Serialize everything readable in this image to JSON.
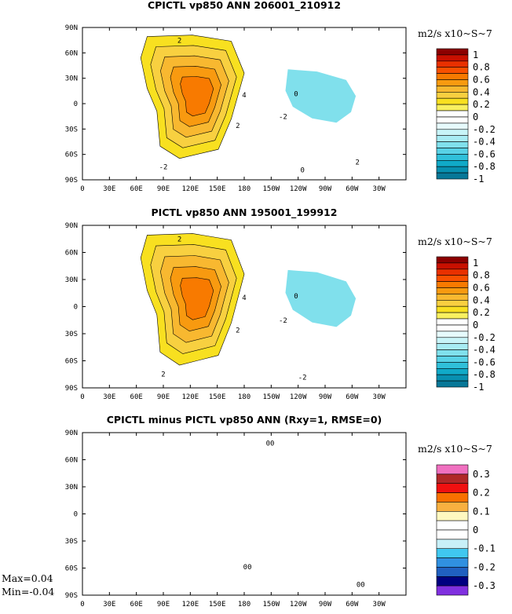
{
  "chart_data": [
    {
      "type": "contour-map",
      "title": "CPICTL vp850 ANN 206001_210912",
      "colorbar_unit": "m2/s x10~S~7",
      "colorbar_labels": [
        "1",
        "0.8",
        "0.6",
        "0.4",
        "0.2",
        "0",
        "-0.2",
        "-0.4",
        "-0.6",
        "-0.8",
        "-1"
      ],
      "colorbar_colors": [
        "#8c0000",
        "#c81000",
        "#e83000",
        "#f85000",
        "#f87a00",
        "#f89a10",
        "#f8b830",
        "#f8d040",
        "#f8e020",
        "#f8f060",
        "#ffffff",
        "#ffffff",
        "#e6fafc",
        "#c8f4f8",
        "#a8ecf4",
        "#80e0ec",
        "#58d2e6",
        "#30c0da",
        "#10aac8",
        "#0890b0",
        "#087898"
      ],
      "x_ticks": [
        "0",
        "30E",
        "60E",
        "90E",
        "120E",
        "150E",
        "180",
        "150W",
        "120W",
        "90W",
        "60W",
        "30W"
      ],
      "y_ticks": [
        "90N",
        "60N",
        "30N",
        "0",
        "30S",
        "60S",
        "90S"
      ],
      "contour_labels": [
        "2",
        "4",
        "2",
        "-2",
        "0",
        "-2",
        "0",
        "2"
      ]
    },
    {
      "type": "contour-map",
      "title": "PICTL vp850 ANN 195001_199912",
      "colorbar_unit": "m2/s x10~S~7",
      "colorbar_labels": [
        "1",
        "0.8",
        "0.6",
        "0.4",
        "0.2",
        "0",
        "-0.2",
        "-0.4",
        "-0.6",
        "-0.8",
        "-1"
      ],
      "colorbar_colors": [
        "#8c0000",
        "#c81000",
        "#e83000",
        "#f85000",
        "#f87a00",
        "#f89a10",
        "#f8b830",
        "#f8d040",
        "#f8e020",
        "#f8f060",
        "#ffffff",
        "#ffffff",
        "#e6fafc",
        "#c8f4f8",
        "#a8ecf4",
        "#80e0ec",
        "#58d2e6",
        "#30c0da",
        "#10aac8",
        "#0890b0",
        "#087898"
      ],
      "x_ticks": [
        "0",
        "30E",
        "60E",
        "90E",
        "120E",
        "150E",
        "180",
        "150W",
        "120W",
        "90W",
        "60W",
        "30W"
      ],
      "y_ticks": [
        "90N",
        "60N",
        "30N",
        "0",
        "30S",
        "60S",
        "90S"
      ],
      "contour_labels": [
        "2",
        "4",
        "2",
        "-2",
        "0",
        "2",
        "-2"
      ]
    },
    {
      "type": "contour-map",
      "title": "CPICTL minus PICTL vp850 ANN (Rxy=1, RMSE=0)",
      "colorbar_unit": "m2/s x10~S~7",
      "colorbar_labels": [
        "0.3",
        "0.2",
        "0.1",
        "0",
        "-0.1",
        "-0.2",
        "-0.3"
      ],
      "colorbar_colors": [
        "#f070c0",
        "#b02828",
        "#f01010",
        "#f87000",
        "#f8b040",
        "#fff8c0",
        "#ffffff",
        "#ffffff",
        "#c8f0f8",
        "#40c8f0",
        "#3090e0",
        "#2060c0",
        "#000080",
        "#8030e0"
      ],
      "x_ticks": [
        "0",
        "30E",
        "60E",
        "90E",
        "120E",
        "150E",
        "180",
        "150W",
        "120W",
        "90W",
        "60W",
        "30W"
      ],
      "y_ticks": [
        "90N",
        "60N",
        "30N",
        "0",
        "30S",
        "60S",
        "90S"
      ],
      "contour_labels": [
        "00",
        "00",
        "00"
      ],
      "stats": {
        "max": "Max=0.04",
        "min": "Min=-0.04"
      }
    }
  ]
}
